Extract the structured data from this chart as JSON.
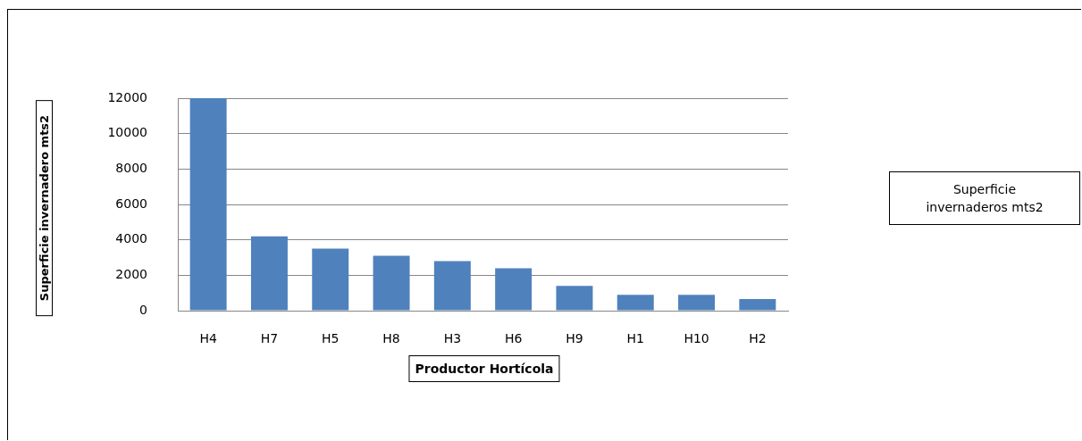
{
  "chart_data": {
    "type": "bar",
    "xlabel": "Productor Hortícola",
    "ylabel": "Superficie invernadero mts2",
    "categories": [
      "H4",
      "H7",
      "H5",
      "H8",
      "H3",
      "H6",
      "H9",
      "H1",
      "H10",
      "H2"
    ],
    "series": [
      {
        "name": "Superficie invernaderos mts2",
        "color": "#4f81bd",
        "values": [
          12000,
          4200,
          3500,
          3100,
          2800,
          2400,
          1400,
          900,
          900,
          650
        ]
      }
    ],
    "ylim": [
      0,
      12000
    ],
    "yticks": [
      0,
      2000,
      4000,
      6000,
      8000,
      10000,
      12000
    ],
    "grid": "y",
    "legend": "right"
  }
}
